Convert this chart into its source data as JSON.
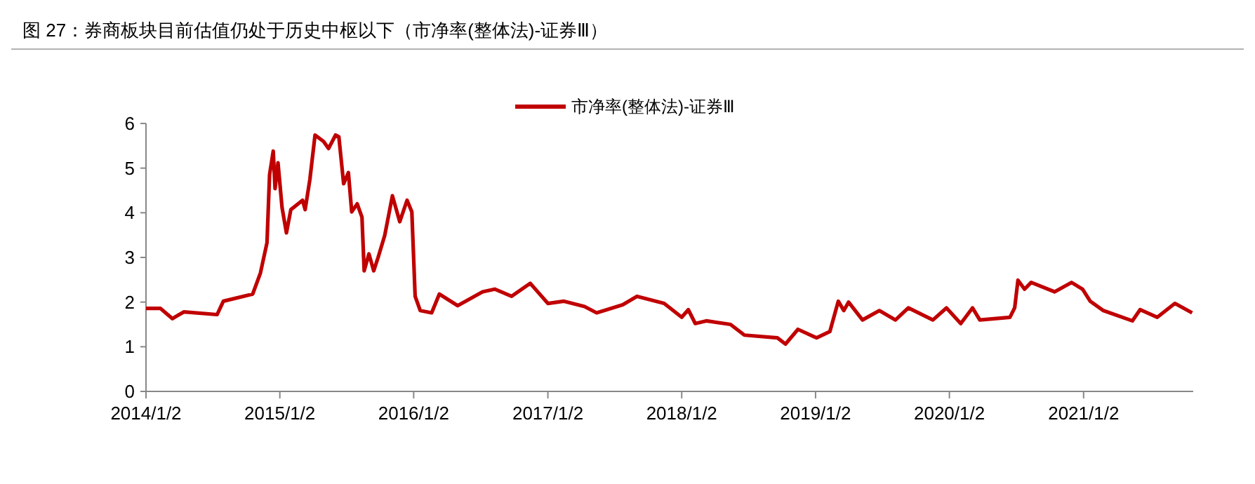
{
  "chart_data": {
    "type": "line",
    "title": "图 27：券商板块目前估值仍处于历史中枢以下（市净率(整体法)-证券Ⅲ）",
    "legend": "top",
    "grid": false,
    "line_style": "solid",
    "ylim": [
      0,
      6
    ],
    "yticks": [
      0,
      1,
      2,
      3,
      4,
      5,
      6
    ],
    "xlim": [
      "2014-01-02",
      "2021-10-28"
    ],
    "xticks": [
      {
        "value": "2014-01-02",
        "label": "2014/1/2"
      },
      {
        "value": "2015-01-02",
        "label": "2015/1/2"
      },
      {
        "value": "2016-01-02",
        "label": "2016/1/2"
      },
      {
        "value": "2017-01-02",
        "label": "2017/1/2"
      },
      {
        "value": "2018-01-02",
        "label": "2018/1/2"
      },
      {
        "value": "2019-01-02",
        "label": "2019/1/2"
      },
      {
        "value": "2020-01-02",
        "label": "2020/1/2"
      },
      {
        "value": "2021-01-02",
        "label": "2021/1/2"
      }
    ],
    "series": [
      {
        "name": "市净率(整体法)-证券Ⅲ",
        "color": "#c00000",
        "x": [
          "2014-01-02",
          "2014-02-10",
          "2014-03-15",
          "2014-04-15",
          "2014-07-15",
          "2014-08-01",
          "2014-10-20",
          "2014-11-10",
          "2014-11-28",
          "2014-12-05",
          "2014-12-15",
          "2014-12-20",
          "2014-12-28",
          "2015-01-08",
          "2015-01-20",
          "2015-02-01",
          "2015-03-05",
          "2015-03-12",
          "2015-03-25",
          "2015-04-08",
          "2015-05-01",
          "2015-05-15",
          "2015-06-03",
          "2015-06-12",
          "2015-06-25",
          "2015-07-08",
          "2015-07-17",
          "2015-08-01",
          "2015-08-14",
          "2015-08-20",
          "2015-09-02",
          "2015-09-15",
          "2015-09-27",
          "2015-10-15",
          "2015-11-05",
          "2015-11-25",
          "2015-12-15",
          "2015-12-28",
          "2016-01-06",
          "2016-01-20",
          "2016-02-20",
          "2016-03-12",
          "2016-05-01",
          "2016-07-08",
          "2016-08-10",
          "2016-09-25",
          "2016-11-15",
          "2017-01-02",
          "2017-02-15",
          "2017-04-12",
          "2017-05-15",
          "2017-07-25",
          "2017-09-02",
          "2017-11-15",
          "2018-01-02",
          "2018-01-20",
          "2018-02-08",
          "2018-03-10",
          "2018-05-15",
          "2018-06-22",
          "2018-09-20",
          "2018-10-12",
          "2018-11-15",
          "2018-12-25",
          "2019-01-05",
          "2019-02-10",
          "2019-03-05",
          "2019-03-20",
          "2019-04-02",
          "2019-05-10",
          "2019-06-25",
          "2019-08-08",
          "2019-09-12",
          "2019-11-18",
          "2019-12-25",
          "2020-02-02",
          "2020-03-05",
          "2020-03-25",
          "2020-06-15",
          "2020-06-28",
          "2020-07-07",
          "2020-07-25",
          "2020-08-12",
          "2020-10-15",
          "2020-11-30",
          "2020-12-30",
          "2021-01-20",
          "2021-02-25",
          "2021-05-15",
          "2021-06-05",
          "2021-07-22",
          "2021-09-08",
          "2021-10-25"
        ],
        "values": [
          1.86,
          1.86,
          1.63,
          1.78,
          1.72,
          2.02,
          2.18,
          2.65,
          3.33,
          4.85,
          5.38,
          4.54,
          5.12,
          4.12,
          3.55,
          4.07,
          4.28,
          4.07,
          4.75,
          5.74,
          5.6,
          5.44,
          5.74,
          5.7,
          4.65,
          4.9,
          4.02,
          4.2,
          3.9,
          2.7,
          3.08,
          2.7,
          3.0,
          3.49,
          4.38,
          3.8,
          4.28,
          4.02,
          2.13,
          1.81,
          1.76,
          2.18,
          1.92,
          2.23,
          2.29,
          2.13,
          2.42,
          1.97,
          2.02,
          1.9,
          1.76,
          1.94,
          2.13,
          1.97,
          1.66,
          1.83,
          1.52,
          1.58,
          1.5,
          1.26,
          1.2,
          1.06,
          1.39,
          1.24,
          1.2,
          1.34,
          2.02,
          1.81,
          2.0,
          1.6,
          1.81,
          1.6,
          1.87,
          1.6,
          1.87,
          1.52,
          1.87,
          1.6,
          1.66,
          1.87,
          2.49,
          2.29,
          2.44,
          2.23,
          2.44,
          2.29,
          2.02,
          1.81,
          1.58,
          1.83,
          1.66,
          1.97,
          1.76
        ]
      }
    ]
  }
}
